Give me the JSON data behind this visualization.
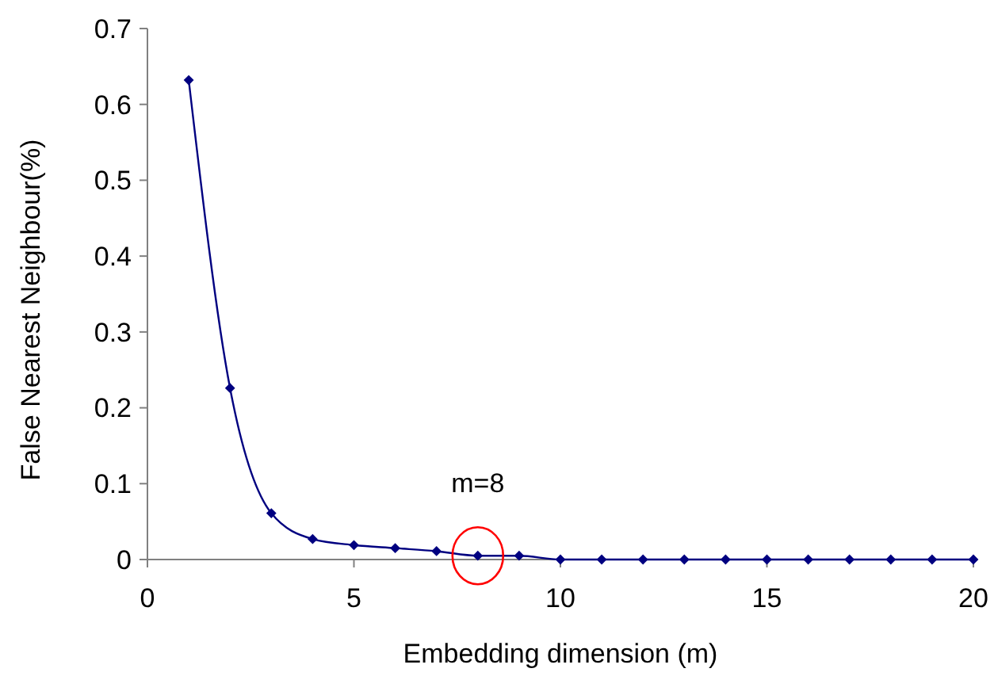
{
  "chart_data": {
    "type": "line",
    "xlabel": "Embedding dimension (m)",
    "ylabel": "False Nearest Neighbour(%)",
    "x": [
      1,
      2,
      3,
      4,
      5,
      6,
      7,
      8,
      9,
      10,
      11,
      12,
      13,
      14,
      15,
      16,
      17,
      18,
      19,
      20
    ],
    "series": [
      {
        "color": "#000080",
        "values": [
          0.632,
          0.226,
          0.061,
          0.027,
          0.019,
          0.015,
          0.011,
          0.005,
          0.005,
          0,
          0,
          0,
          0,
          0,
          0,
          0,
          0,
          0,
          0,
          0
        ]
      }
    ],
    "xlim": [
      0,
      20
    ],
    "xticks": [
      0,
      5,
      10,
      15,
      20
    ],
    "ylim": [
      0,
      0.7
    ],
    "yticks": [
      0,
      0.1,
      0.2,
      0.3,
      0.4,
      0.5,
      0.6,
      0.7
    ],
    "annotations": [
      {
        "text": "m=8",
        "x": 8,
        "y": 0.005
      }
    ],
    "grid": false,
    "marker": "diamond",
    "line_style": "solid"
  }
}
